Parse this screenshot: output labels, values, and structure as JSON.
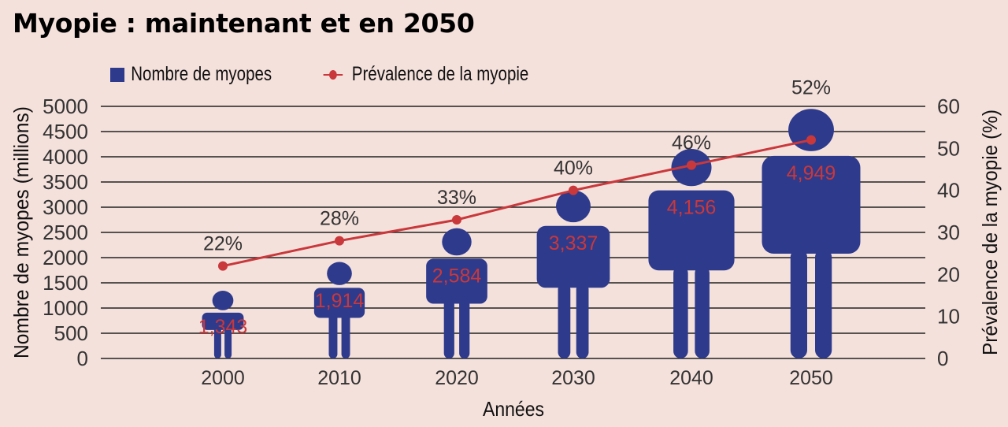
{
  "chart_data": {
    "type": "bar+line",
    "title": "Myopie : maintenant et en 2050",
    "xlabel": "Années",
    "ylabel_left": "Nombre de myopes (millions)",
    "ylabel_right": "Prévalence de la myopie (%)",
    "categories": [
      "2000",
      "2010",
      "2020",
      "2030",
      "2040",
      "2050"
    ],
    "left_ticks": [
      "5000",
      "4500",
      "4000",
      "3500",
      "3000",
      "2500",
      "2000",
      "1500",
      "1000",
      "500",
      "0"
    ],
    "right_ticks": [
      "60",
      "50",
      "40",
      "30",
      "20",
      "10",
      "0"
    ],
    "ylim_left": [
      0,
      5000
    ],
    "ylim_right": [
      0,
      60
    ],
    "grid": true,
    "legend_position": "top",
    "series": [
      {
        "name": "Nombre de myopes",
        "type": "bar",
        "axis": "left",
        "color": "#2e3a8c",
        "values": [
          1343,
          1914,
          2584,
          3337,
          4156,
          4949
        ],
        "labels": [
          "1,343",
          "1,914",
          "2,584",
          "3,337",
          "4,156",
          "4,949"
        ]
      },
      {
        "name": "Prévalence de la myopie",
        "type": "line",
        "axis": "right",
        "color": "#c9383b",
        "values": [
          22,
          28,
          33,
          40,
          46,
          52
        ],
        "labels": [
          "22%",
          "28%",
          "33%",
          "40%",
          "46%",
          "52%"
        ]
      }
    ]
  }
}
